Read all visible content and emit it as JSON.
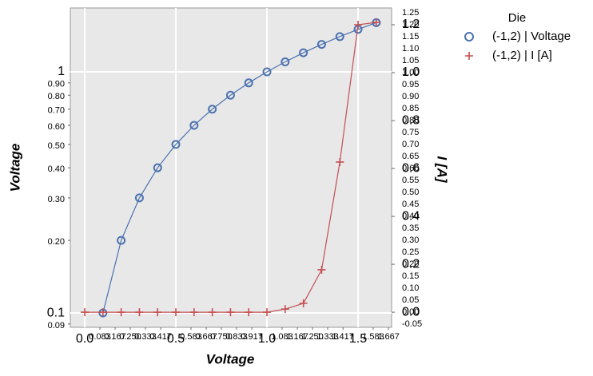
{
  "chart_data": {
    "type": "line",
    "x_label": "Voltage",
    "y_label": "Voltage",
    "y2_label": "I [A]",
    "x": [
      0.0,
      0.1,
      0.2,
      0.3,
      0.4,
      0.5,
      0.6,
      0.7,
      0.8,
      0.9,
      1.0,
      1.1,
      1.2,
      1.3,
      1.4,
      1.5,
      1.6
    ],
    "series": [
      {
        "name": "(-1,2) | Voltage",
        "color": "#4c72b0",
        "marker": "circle",
        "values": [
          null,
          0.1,
          0.2,
          0.3,
          0.4,
          0.5,
          0.6,
          0.7,
          0.8,
          0.9,
          1.0,
          1.1,
          1.2,
          1.3,
          1.4,
          1.5,
          1.6
        ]
      },
      {
        "name": "(-1,2) | I [A]",
        "color": "#c44e52",
        "marker": "plus",
        "axis": "y2",
        "values": [
          0,
          0,
          0,
          0,
          0,
          0,
          0,
          0,
          0,
          0,
          0,
          0.013,
          0.037,
          0.177,
          0.627,
          1.2,
          1.21
        ]
      }
    ],
    "legend_title": "Die",
    "legend": "outside-right",
    "xlim": [
      -0.079,
      1.684
    ],
    "xticks": [
      {
        "value": 0.0,
        "label": "0.0"
      },
      0.5,
      {
        "value": 1.0,
        "label": "1.0"
      },
      1.5
    ],
    "xticks_minor": [
      {
        "value": 0.0833,
        "label": "0.083"
      },
      {
        "value": 0.1667,
        "label": "0.167"
      },
      {
        "value": 0.25,
        "label": "0.250"
      },
      0.333,
      0.417,
      0.583,
      0.667,
      {
        "value": 0.75,
        "label": "0.750"
      },
      0.833,
      0.917,
      1.083,
      1.167,
      {
        "value": 1.25,
        "label": "1.250"
      },
      1.333,
      1.417,
      1.583,
      1.667
    ],
    "log_y": true,
    "ylim": [
      0.0872,
      1.84
    ],
    "yticks": [
      0.1,
      1
    ],
    "yticks_minor": [
      0.09,
      {
        "value": 0.2,
        "label": "0.20"
      },
      {
        "value": 0.3,
        "label": "0.30"
      },
      {
        "value": 0.4,
        "label": "0.40"
      },
      {
        "value": 0.5,
        "label": "0.50"
      },
      {
        "value": 0.6,
        "label": "0.60"
      },
      {
        "value": 0.7,
        "label": "0.70"
      },
      {
        "value": 0.8,
        "label": "0.80"
      },
      {
        "value": 0.9,
        "label": "0.90"
      }
    ],
    "y2lim": [
      -0.063,
      1.27
    ],
    "y2ticks": [
      {
        "value": 0,
        "label": "0.0"
      },
      0.2,
      0.4,
      0.6,
      0.8,
      {
        "value": 1,
        "label": "1.0"
      },
      1.2
    ],
    "y2ticks_minor": [
      -0.05,
      {
        "value": 0,
        "label": "0.00"
      },
      0.05,
      {
        "value": 0.1,
        "label": "0.10"
      },
      0.15,
      {
        "value": 0.2,
        "label": "0.20"
      },
      0.25,
      {
        "value": 0.3,
        "label": "0.30"
      },
      0.35,
      {
        "value": 0.4,
        "label": "0.40"
      },
      0.45,
      {
        "value": 0.5,
        "label": "0.50"
      },
      0.55,
      {
        "value": 0.6,
        "label": "0.60"
      },
      0.65,
      {
        "value": 0.7,
        "label": "0.70"
      },
      0.75,
      {
        "value": 0.8,
        "label": "0.80"
      },
      0.85,
      {
        "value": 0.9,
        "label": "0.90"
      },
      0.95,
      {
        "value": 1,
        "label": "1.00"
      },
      1.05,
      {
        "value": 1.1,
        "label": "1.10"
      },
      1.15,
      {
        "value": 1.2,
        "label": "1.20"
      },
      1.25
    ],
    "grid": true
  }
}
